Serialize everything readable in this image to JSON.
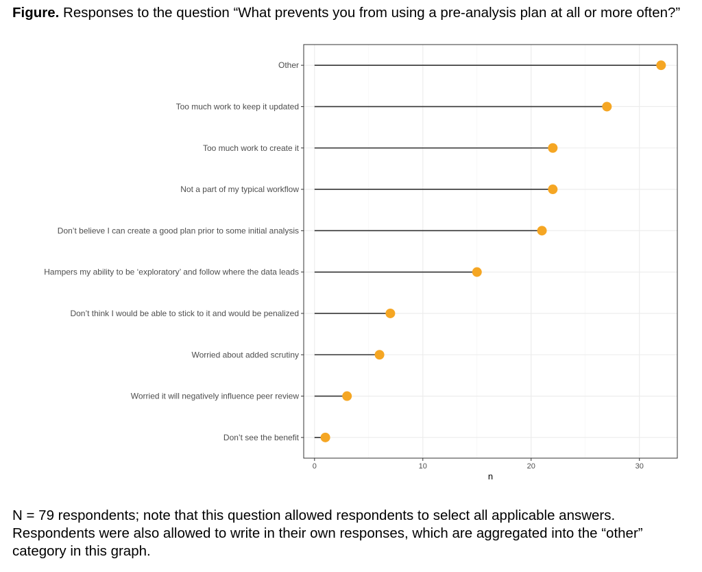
{
  "figure": {
    "caption_prefix": "Figure.",
    "caption_text": " Responses to the question “What prevents you from using a pre-analysis plan at all or more often?”",
    "footnote": "N = 79 respondents; note that this question allowed respondents to select all applicable answers. Respondents were also allowed to write in their own responses, which are aggregated into the “other” category in this graph."
  },
  "chart_data": {
    "type": "lollipop",
    "orientation": "horizontal",
    "categories": [
      "Other",
      "Too much work to keep it updated",
      "Too much work to create it",
      "Not a part of my typical workflow",
      "Don’t believe I can create a good plan prior to some initial analysis",
      "Hampers my ability to be ‘exploratory’ and follow where the data leads",
      "Don’t think I would be able to stick to it and would be penalized",
      "Worried about added scrutiny",
      "Worried it will negatively influence peer review",
      "Don’t see the benefit"
    ],
    "values": [
      32,
      27,
      22,
      22,
      21,
      15,
      7,
      6,
      3,
      1
    ],
    "xlabel": "n",
    "ylabel": "",
    "xlim": [
      -1,
      33.5
    ],
    "xticks": [
      0,
      10,
      20,
      30
    ],
    "grid": true,
    "point_color": "#f5a623",
    "stem_color": "#333333",
    "panel_border_color": "#333333",
    "grid_color": "#ebebeb"
  }
}
